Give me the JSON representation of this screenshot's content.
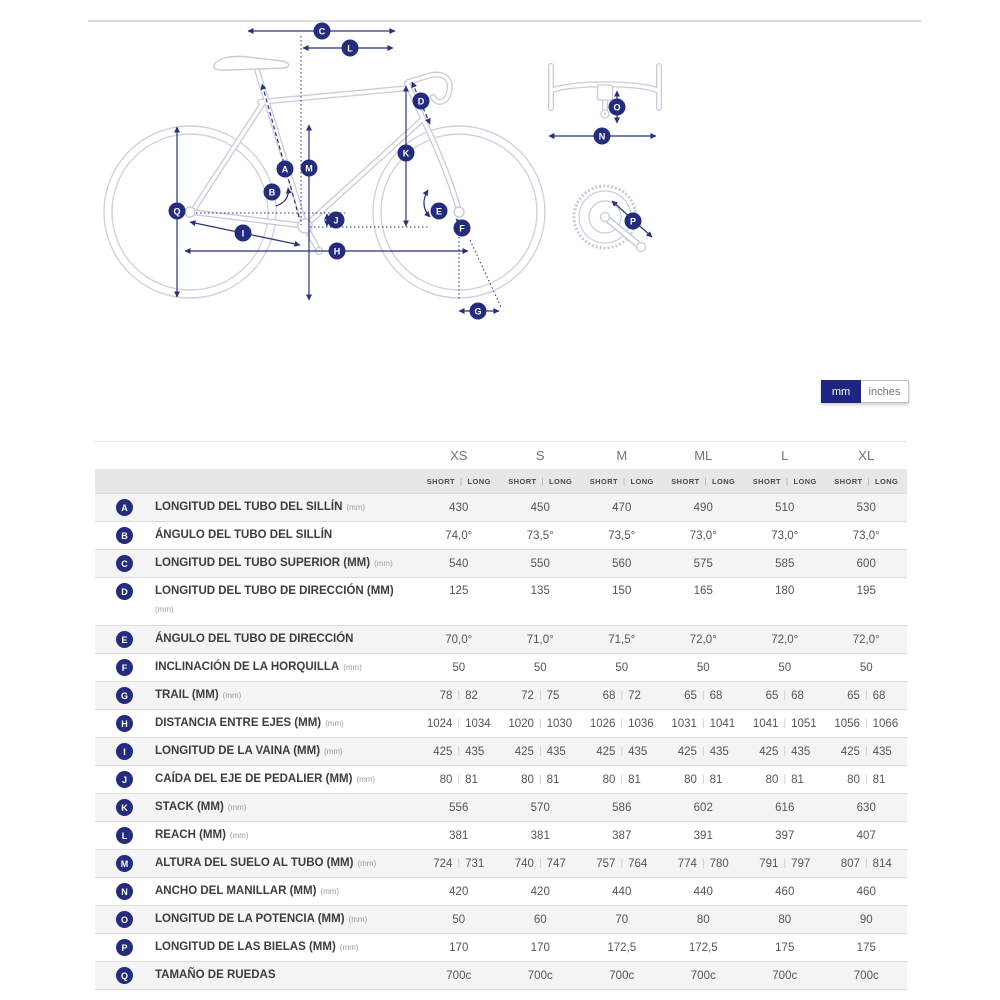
{
  "diagram": {
    "letters": [
      "A",
      "B",
      "C",
      "D",
      "E",
      "F",
      "G",
      "H",
      "I",
      "J",
      "K",
      "L",
      "M",
      "N",
      "O",
      "P",
      "Q"
    ]
  },
  "toggle": {
    "mm": "mm",
    "inches": "inches"
  },
  "table": {
    "sizes": [
      "XS",
      "S",
      "M",
      "ML",
      "L",
      "XL"
    ],
    "sub_header": {
      "short": "SHORT",
      "long": "LONG"
    },
    "rows": [
      {
        "key": "A",
        "label": "LONGITUD DEL TUBO DEL SILLÍN",
        "unit": "(mm)",
        "values": [
          "430",
          "450",
          "470",
          "490",
          "510",
          "530"
        ]
      },
      {
        "key": "B",
        "label": "ÁNGULO DEL TUBO DEL SILLÍN",
        "unit": "",
        "values": [
          "74,0°",
          "73,5°",
          "73,5°",
          "73,0°",
          "73,0°",
          "73,0°"
        ]
      },
      {
        "key": "C",
        "label": "LONGITUD DEL TUBO SUPERIOR (MM)",
        "unit": "(mm)",
        "values": [
          "540",
          "550",
          "560",
          "575",
          "585",
          "600"
        ]
      },
      {
        "key": "D",
        "label": "LONGITUD DEL TUBO DE DIRECCIÓN (MM)",
        "unit": "(mm)",
        "unit_newline": true,
        "values": [
          "125",
          "135",
          "150",
          "165",
          "180",
          "195"
        ]
      },
      {
        "key": "E",
        "label": "ÁNGULO DEL TUBO DE DIRECCIÓN",
        "unit": "",
        "values": [
          "70,0°",
          "71,0°",
          "71,5°",
          "72,0°",
          "72,0°",
          "72,0°"
        ]
      },
      {
        "key": "F",
        "label": "INCLINACIÓN DE LA HORQUILLA",
        "unit": "(mm)",
        "values": [
          "50",
          "50",
          "50",
          "50",
          "50",
          "50"
        ]
      },
      {
        "key": "G",
        "label": "TRAIL (MM)",
        "unit": "(mm)",
        "values": [
          [
            "78",
            "82"
          ],
          [
            "72",
            "75"
          ],
          [
            "68",
            "72"
          ],
          [
            "65",
            "68"
          ],
          [
            "65",
            "68"
          ],
          [
            "65",
            "68"
          ]
        ]
      },
      {
        "key": "H",
        "label": "DISTANCIA ENTRE EJES (MM)",
        "unit": "(mm)",
        "values": [
          [
            "1024",
            "1034"
          ],
          [
            "1020",
            "1030"
          ],
          [
            "1026",
            "1036"
          ],
          [
            "1031",
            "1041"
          ],
          [
            "1041",
            "1051"
          ],
          [
            "1056",
            "1066"
          ]
        ]
      },
      {
        "key": "I",
        "label": "LONGITUD DE LA VAINA (MM)",
        "unit": "(mm)",
        "values": [
          [
            "425",
            "435"
          ],
          [
            "425",
            "435"
          ],
          [
            "425",
            "435"
          ],
          [
            "425",
            "435"
          ],
          [
            "425",
            "435"
          ],
          [
            "425",
            "435"
          ]
        ]
      },
      {
        "key": "J",
        "label": "CAÍDA DEL EJE DE PEDALIER (MM)",
        "unit": "(mm)",
        "values": [
          [
            "80",
            "81"
          ],
          [
            "80",
            "81"
          ],
          [
            "80",
            "81"
          ],
          [
            "80",
            "81"
          ],
          [
            "80",
            "81"
          ],
          [
            "80",
            "81"
          ]
        ]
      },
      {
        "key": "K",
        "label": "STACK (MM)",
        "unit": "(mm)",
        "values": [
          "556",
          "570",
          "586",
          "602",
          "616",
          "630"
        ]
      },
      {
        "key": "L",
        "label": "REACH (MM)",
        "unit": "(mm)",
        "values": [
          "381",
          "381",
          "387",
          "391",
          "397",
          "407"
        ]
      },
      {
        "key": "M",
        "label": "ALTURA DEL SUELO AL TUBO (MM)",
        "unit": "(mm)",
        "values": [
          [
            "724",
            "731"
          ],
          [
            "740",
            "747"
          ],
          [
            "757",
            "764"
          ],
          [
            "774",
            "780"
          ],
          [
            "791",
            "797"
          ],
          [
            "807",
            "814"
          ]
        ]
      },
      {
        "key": "N",
        "label": "ANCHO DEL MANILLAR (MM)",
        "unit": "(mm)",
        "values": [
          "420",
          "420",
          "440",
          "440",
          "460",
          "460"
        ]
      },
      {
        "key": "O",
        "label": "LONGITUD DE LA POTENCIA (MM)",
        "unit": "(mm)",
        "values": [
          "50",
          "60",
          "70",
          "80",
          "80",
          "90"
        ]
      },
      {
        "key": "P",
        "label": "LONGITUD DE LAS BIELAS (MM)",
        "unit": "(mm)",
        "values": [
          "170",
          "170",
          "172,5",
          "172,5",
          "175",
          "175"
        ]
      },
      {
        "key": "Q",
        "label": "TAMAÑO DE RUEDAS",
        "unit": "",
        "values": [
          "700c",
          "700c",
          "700c",
          "700c",
          "700c",
          "700c"
        ]
      }
    ]
  }
}
